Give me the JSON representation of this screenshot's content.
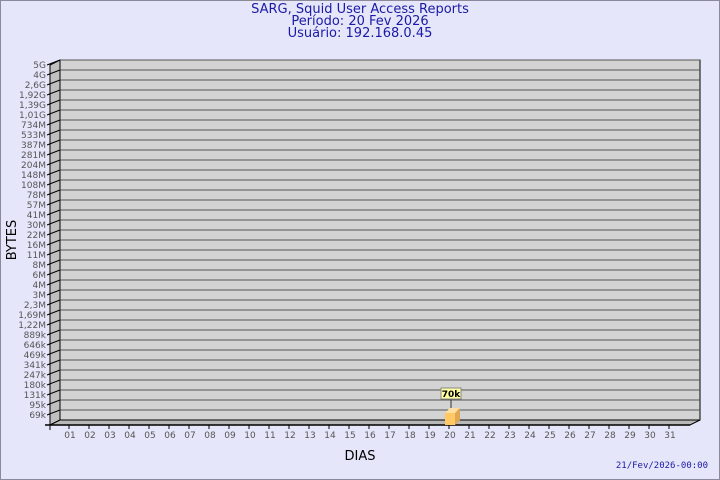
{
  "header": {
    "title": "SARG, Squid User Access Reports",
    "period": "Período: 20 Fev 2026",
    "user": "Usuário: 192.168.0.45"
  },
  "footer": {
    "generated": "21/Fev/2026-00:00"
  },
  "colors": {
    "background": "#e6e6fa",
    "plot": "#d3d3d3",
    "wall": "#c0c0c0",
    "bar": "#ffc864",
    "title": "#1a1aa6"
  },
  "chart_data": {
    "type": "bar",
    "xlabel": "DIAS",
    "ylabel": "BYTES",
    "y_scale": "log",
    "grid": true,
    "categories": [
      "01",
      "02",
      "03",
      "04",
      "05",
      "06",
      "07",
      "08",
      "09",
      "10",
      "11",
      "12",
      "13",
      "14",
      "15",
      "16",
      "17",
      "18",
      "19",
      "20",
      "21",
      "22",
      "23",
      "24",
      "25",
      "26",
      "27",
      "28",
      "29",
      "30",
      "31"
    ],
    "values": [
      0,
      0,
      0,
      0,
      0,
      0,
      0,
      0,
      0,
      0,
      0,
      0,
      0,
      0,
      0,
      0,
      0,
      0,
      0,
      70000,
      0,
      0,
      0,
      0,
      0,
      0,
      0,
      0,
      0,
      0,
      0
    ],
    "data_labels": {
      "20": "70k"
    },
    "y_ticks": [
      "5G",
      "4G",
      "2,6G",
      "1,92G",
      "1,39G",
      "1,01G",
      "734M",
      "533M",
      "387M",
      "281M",
      "204M",
      "148M",
      "108M",
      "78M",
      "57M",
      "41M",
      "30M",
      "22M",
      "16M",
      "11M",
      "8M",
      "6M",
      "4M",
      "3M",
      "2,3M",
      "1,69M",
      "1,22M",
      "889k",
      "646k",
      "469k",
      "341k",
      "247k",
      "180k",
      "131k",
      "95k",
      "69k"
    ]
  }
}
